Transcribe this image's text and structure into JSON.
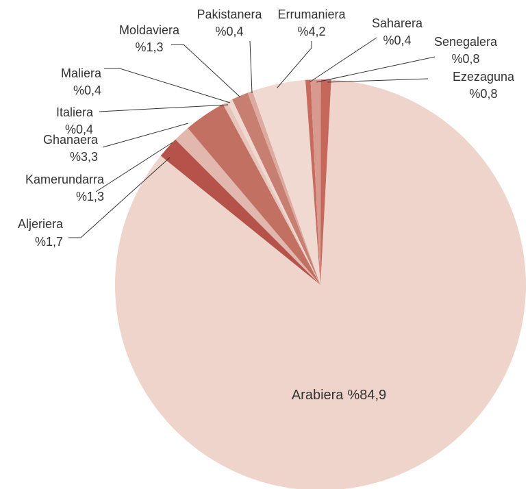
{
  "chart_data": {
    "type": "pie",
    "categories": [
      "Arabiera",
      "Aljeriera",
      "Kamerundarra",
      "Ghanaera",
      "Italiera",
      "Maliera",
      "Moldaviera",
      "Pakistanera",
      "Errumaniera",
      "Saharera",
      "Senegalera",
      "Ezezaguna"
    ],
    "values": [
      84.9,
      1.7,
      1.3,
      3.3,
      0.4,
      0.4,
      1.3,
      0.4,
      4.2,
      0.4,
      0.8,
      0.8
    ],
    "value_labels": [
      "%84,9",
      "%1,7",
      "%1,3",
      "%3,3",
      "%0,4",
      "%0,4",
      "%1,3",
      "%0,4",
      "%4,2",
      "%0,4",
      "%0,8",
      "%0,8"
    ],
    "colors": [
      "#eed4ca",
      "#b5524a",
      "#e2b8ae",
      "#c27062",
      "#e7c5bb",
      "#f0d8d0",
      "#c77f72",
      "#dcaa9f",
      "#f0d9d1",
      "#c76b5e",
      "#d89a8e",
      "#c5685b"
    ]
  }
}
